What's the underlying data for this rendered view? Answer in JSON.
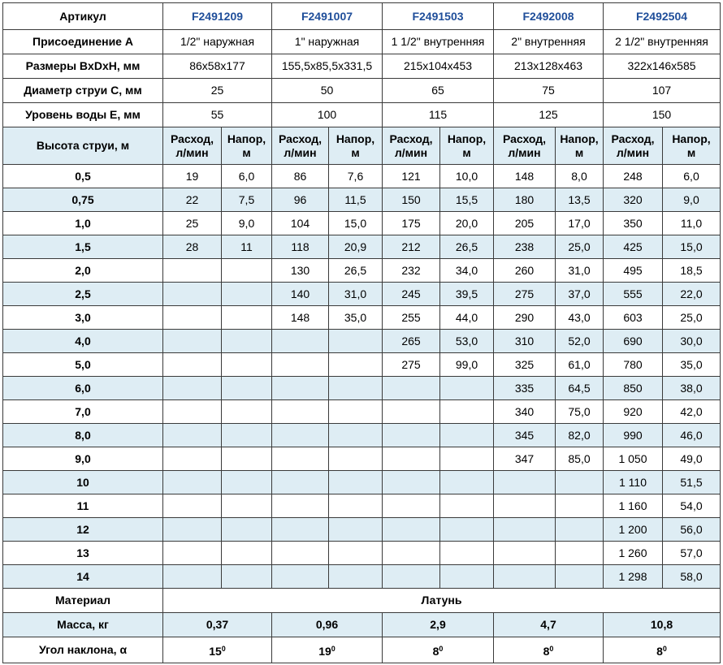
{
  "header": {
    "label": "Артикул",
    "articles": [
      "F2491209",
      "F2491007",
      "F2491503",
      "F2492008",
      "F2492504"
    ]
  },
  "specs": [
    {
      "label": "Присоединение A",
      "values": [
        "1/2\" наружная",
        "1\" наружная",
        "1 1/2\" внутренняя",
        "2\" внутренняя",
        "2 1/2\" внутренняя"
      ]
    },
    {
      "label": "Размеры BxDxH, мм",
      "values": [
        "86x58x177",
        "155,5x85,5x331,5",
        "215x104x453",
        "213x128x463",
        "322x146x585"
      ]
    },
    {
      "label": "Диаметр струи C, мм",
      "values": [
        "25",
        "50",
        "65",
        "75",
        "107"
      ]
    },
    {
      "label": "Уровень воды E, мм",
      "values": [
        "55",
        "100",
        "115",
        "125",
        "150"
      ]
    }
  ],
  "jet_table": {
    "label": "Высота струи, м",
    "flow": [
      "Расход,",
      "л/мин"
    ],
    "head": [
      "Напор,",
      "м"
    ],
    "rows": [
      {
        "height": "0,5",
        "cells": [
          "19",
          "6,0",
          "86",
          "7,6",
          "121",
          "10,0",
          "148",
          "8,0",
          "248",
          "6,0"
        ]
      },
      {
        "height": "0,75",
        "cells": [
          "22",
          "7,5",
          "96",
          "11,5",
          "150",
          "15,5",
          "180",
          "13,5",
          "320",
          "9,0"
        ]
      },
      {
        "height": "1,0",
        "cells": [
          "25",
          "9,0",
          "104",
          "15,0",
          "175",
          "20,0",
          "205",
          "17,0",
          "350",
          "11,0"
        ]
      },
      {
        "height": "1,5",
        "cells": [
          "28",
          "11",
          "118",
          "20,9",
          "212",
          "26,5",
          "238",
          "25,0",
          "425",
          "15,0"
        ]
      },
      {
        "height": "2,0",
        "cells": [
          null,
          null,
          "130",
          "26,5",
          "232",
          "34,0",
          "260",
          "31,0",
          "495",
          "18,5"
        ]
      },
      {
        "height": "2,5",
        "cells": [
          null,
          null,
          "140",
          "31,0",
          "245",
          "39,5",
          "275",
          "37,0",
          "555",
          "22,0"
        ]
      },
      {
        "height": "3,0",
        "cells": [
          null,
          null,
          "148",
          "35,0",
          "255",
          "44,0",
          "290",
          "43,0",
          "603",
          "25,0"
        ]
      },
      {
        "height": "4,0",
        "cells": [
          null,
          null,
          null,
          null,
          "265",
          "53,0",
          "310",
          "52,0",
          "690",
          "30,0"
        ]
      },
      {
        "height": "5,0",
        "cells": [
          null,
          null,
          null,
          null,
          "275",
          "99,0",
          "325",
          "61,0",
          "780",
          "35,0"
        ]
      },
      {
        "height": "6,0",
        "cells": [
          null,
          null,
          null,
          null,
          null,
          null,
          "335",
          "64,5",
          "850",
          "38,0"
        ]
      },
      {
        "height": "7,0",
        "cells": [
          null,
          null,
          null,
          null,
          null,
          null,
          "340",
          "75,0",
          "920",
          "42,0"
        ]
      },
      {
        "height": "8,0",
        "cells": [
          null,
          null,
          null,
          null,
          null,
          null,
          "345",
          "82,0",
          "990",
          "46,0"
        ]
      },
      {
        "height": "9,0",
        "cells": [
          null,
          null,
          null,
          null,
          null,
          null,
          "347",
          "85,0",
          "1 050",
          "49,0"
        ]
      },
      {
        "height": "10",
        "cells": [
          null,
          null,
          null,
          null,
          null,
          null,
          null,
          null,
          "1 110",
          "51,5"
        ]
      },
      {
        "height": "11",
        "cells": [
          null,
          null,
          null,
          null,
          null,
          null,
          null,
          null,
          "1 160",
          "54,0"
        ]
      },
      {
        "height": "12",
        "cells": [
          null,
          null,
          null,
          null,
          null,
          null,
          null,
          null,
          "1 200",
          "56,0"
        ]
      },
      {
        "height": "13",
        "cells": [
          null,
          null,
          null,
          null,
          null,
          null,
          null,
          null,
          "1 260",
          "57,0"
        ]
      },
      {
        "height": "14",
        "cells": [
          null,
          null,
          null,
          null,
          null,
          null,
          null,
          null,
          "1 298",
          "58,0"
        ]
      }
    ]
  },
  "material": {
    "label": "Материал",
    "value": "Латунь"
  },
  "mass": {
    "label": "Масса, кг",
    "values": [
      "0,37",
      "0,96",
      "2,9",
      "4,7",
      "10,8"
    ]
  },
  "angle": {
    "label": "Угол наклона, α",
    "values": [
      {
        "base": "15",
        "sup": "0"
      },
      {
        "base": "19",
        "sup": "0"
      },
      {
        "base": "8",
        "sup": "0"
      },
      {
        "base": "8",
        "sup": "0"
      },
      {
        "base": "8",
        "sup": "0"
      }
    ]
  }
}
